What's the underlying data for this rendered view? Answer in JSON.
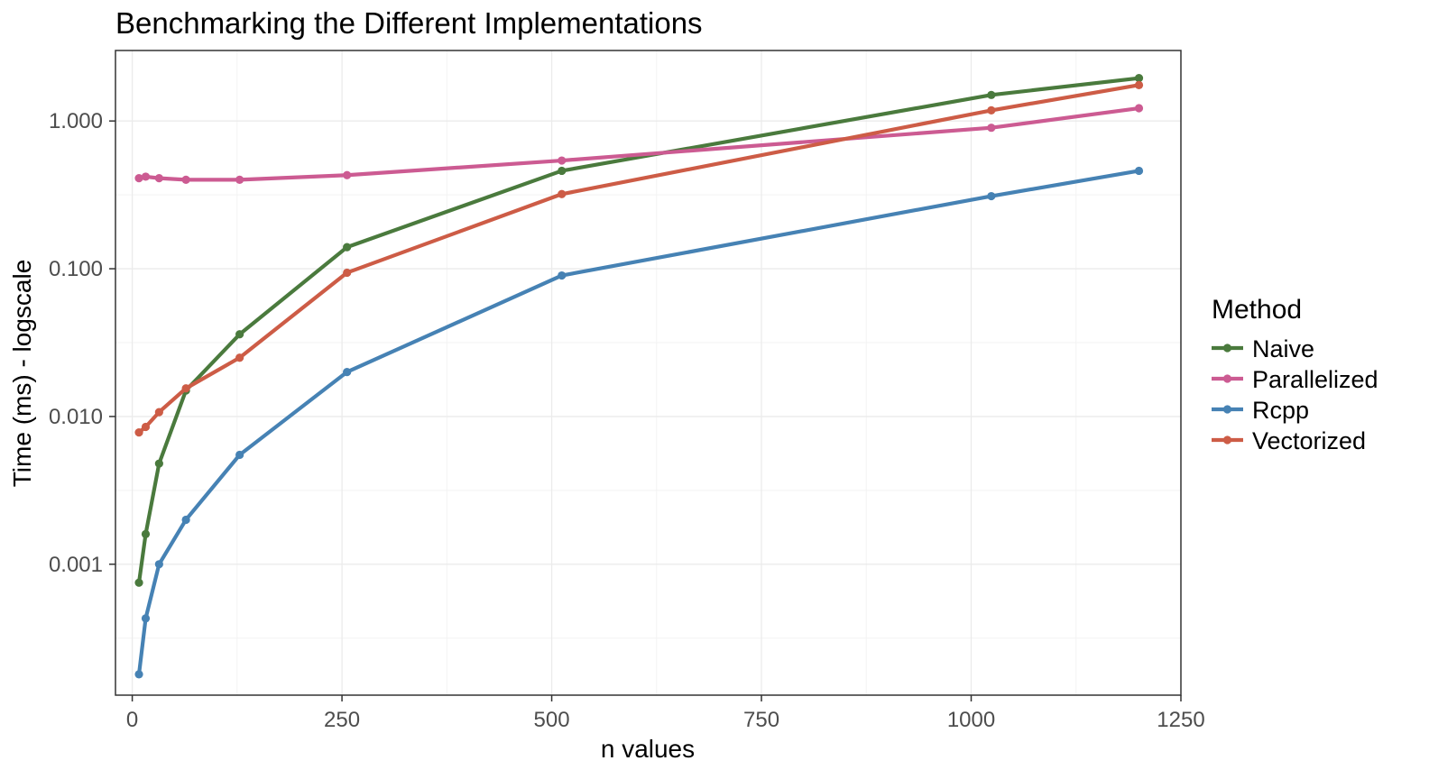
{
  "chart_data": {
    "type": "line",
    "title": "Benchmarking the Different Implementations",
    "xlabel": "n values",
    "ylabel": "Time (ms) - logscale",
    "x_scale": "linear",
    "y_scale": "log10",
    "xlim": [
      -20,
      1250
    ],
    "ylim": [
      0.00013,
      3.0
    ],
    "x_ticks": [
      0,
      250,
      500,
      750,
      1000,
      1250
    ],
    "x_tick_labels": [
      "0",
      "250",
      "500",
      "750",
      "1000",
      "1250"
    ],
    "y_ticks": [
      0.001,
      0.01,
      0.1,
      1
    ],
    "y_tick_labels": [
      "0.001",
      "0.010",
      "0.100",
      "1.000"
    ],
    "grid": true,
    "legend": {
      "title": "Method",
      "position": "right"
    },
    "series": [
      {
        "name": "Naive",
        "color": "#4a7a3d",
        "x": [
          8,
          16,
          32,
          64,
          128,
          256,
          512,
          1024,
          1200
        ],
        "y": [
          0.00075,
          0.0016,
          0.0048,
          0.015,
          0.036,
          0.14,
          0.46,
          1.5,
          1.95
        ]
      },
      {
        "name": "Parallelized",
        "color": "#cc5b92",
        "x": [
          8,
          16,
          32,
          64,
          128,
          256,
          512,
          1024,
          1200
        ],
        "y": [
          0.41,
          0.42,
          0.41,
          0.4,
          0.4,
          0.43,
          0.54,
          0.9,
          1.22
        ]
      },
      {
        "name": "Rcpp",
        "color": "#4682b4",
        "x": [
          8,
          16,
          32,
          64,
          128,
          256,
          512,
          1024,
          1200
        ],
        "y": [
          0.00018,
          0.00043,
          0.001,
          0.002,
          0.0055,
          0.02,
          0.09,
          0.31,
          0.46
        ]
      },
      {
        "name": "Vectorized",
        "color": "#cd5c46",
        "x": [
          8,
          16,
          32,
          64,
          128,
          256,
          512,
          1024,
          1200
        ],
        "y": [
          0.0078,
          0.0085,
          0.0107,
          0.0155,
          0.025,
          0.094,
          0.32,
          1.18,
          1.75
        ]
      }
    ]
  }
}
